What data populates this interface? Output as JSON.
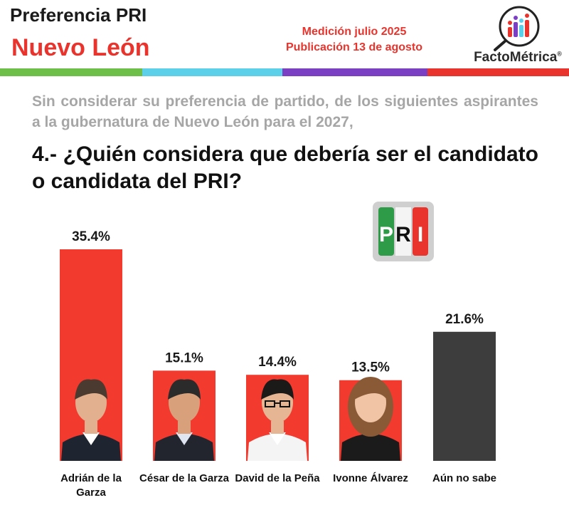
{
  "header": {
    "title": "Preferencia PRI",
    "state": "Nuevo León",
    "measurement": "Medición julio 2025",
    "publication": "Publicación 13 de agosto",
    "brand": "FactoMétrica",
    "brand_mark": "®"
  },
  "stripe_colors": [
    "#6dbf4a",
    "#5bd0e8",
    "#7b3fc4",
    "#e8342d"
  ],
  "intro_text": "Sin considerar su preferencia de partido, de los siguientes aspirantes a la gubernatura de Nuevo León para el 2027,",
  "question_text": "4.- ¿Quién considera que debería ser el candidato o candidata del PRI?",
  "pri_logo": {
    "letters": [
      "P",
      "R",
      "I"
    ],
    "colors": [
      "#2e9b48",
      "#ffffff",
      "#e8342d"
    ]
  },
  "chart_data": {
    "type": "bar",
    "categories": [
      "Adrián de la Garza",
      "César de la Garza",
      "David de la Peña",
      "Ivonne Álvarez",
      "Aún no sabe"
    ],
    "category_lines": [
      [
        "Adrián de la",
        "Garza"
      ],
      [
        "César de la Garza"
      ],
      [
        "David de la Peña"
      ],
      [
        "Ivonne Álvarez"
      ],
      [
        "Aún no sabe"
      ]
    ],
    "values": [
      35.4,
      15.1,
      14.4,
      13.5,
      21.6
    ],
    "value_labels": [
      "35.4%",
      "15.1%",
      "14.4%",
      "13.5%",
      "21.6%"
    ],
    "bar_colors": [
      "#f23a2f",
      "#f23a2f",
      "#f23a2f",
      "#f23a2f",
      "#3d3d3d"
    ],
    "ylim": [
      0,
      40
    ],
    "grid": false,
    "legend": "none"
  }
}
